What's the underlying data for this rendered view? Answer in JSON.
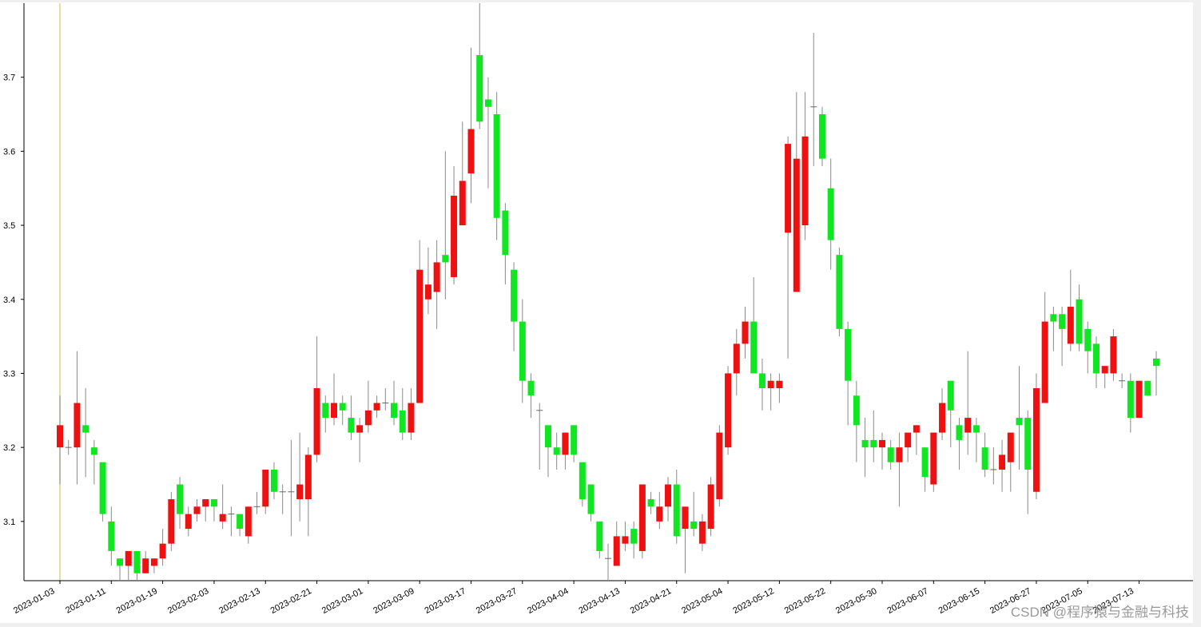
{
  "chart_data": {
    "type": "candlestick",
    "categories": [
      "2023-01-03",
      null,
      null,
      null,
      null,
      null,
      "2023-01-11",
      null,
      null,
      null,
      null,
      null,
      "2023-01-19",
      null,
      null,
      null,
      null,
      null,
      "2023-02-03",
      null,
      null,
      null,
      null,
      null,
      "2023-02-13",
      null,
      null,
      null,
      null,
      null,
      "2023-02-21",
      null,
      null,
      null,
      null,
      null,
      "2023-03-01",
      null,
      null,
      null,
      null,
      null,
      "2023-03-09",
      null,
      null,
      null,
      null,
      null,
      "2023-03-17",
      null,
      null,
      null,
      null,
      null,
      "2023-03-27",
      null,
      null,
      null,
      null,
      null,
      "2023-04-04",
      null,
      null,
      null,
      null,
      null,
      "2023-04-13",
      null,
      null,
      null,
      null,
      null,
      "2023-04-21",
      null,
      null,
      null,
      null,
      null,
      "2023-05-04",
      null,
      null,
      null,
      null,
      null,
      "2023-05-12",
      null,
      null,
      null,
      null,
      null,
      "2023-05-22",
      null,
      null,
      null,
      null,
      null,
      "2023-05-30",
      null,
      null,
      null,
      null,
      null,
      "2023-06-07",
      null,
      null,
      null,
      null,
      null,
      "2023-06-15",
      null,
      null,
      null,
      null,
      null,
      "2023-06-27",
      null,
      null,
      null,
      null,
      null,
      "2023-07-05",
      null,
      null,
      null,
      null,
      null,
      "2023-07-13",
      null,
      null
    ],
    "open": [
      3.2,
      3.2,
      3.2,
      3.23,
      3.2,
      3.18,
      3.1,
      3.05,
      3.04,
      3.06,
      3.03,
      3.04,
      3.05,
      3.07,
      3.15,
      3.09,
      3.11,
      3.12,
      3.13,
      3.1,
      3.11,
      3.11,
      3.08,
      3.12,
      3.12,
      3.17,
      3.14,
      3.14,
      3.13,
      3.13,
      3.19,
      3.26,
      3.24,
      3.26,
      3.24,
      3.22,
      3.23,
      3.25,
      3.26,
      3.26,
      3.25,
      3.22,
      3.26,
      3.4,
      3.41,
      3.46,
      3.43,
      3.5,
      3.57,
      3.73,
      3.67,
      3.65,
      3.52,
      3.44,
      3.37,
      3.29,
      3.25,
      3.23,
      3.2,
      3.19,
      3.23,
      3.18,
      3.15,
      3.1,
      3.05,
      3.04,
      3.07,
      3.09,
      3.06,
      3.13,
      3.1,
      3.12,
      3.15,
      3.09,
      3.1,
      3.07,
      3.09,
      3.13,
      3.2,
      3.3,
      3.34,
      3.37,
      3.3,
      3.28,
      3.28,
      3.49,
      3.41,
      3.5,
      3.66,
      3.65,
      3.55,
      3.46,
      3.36,
      3.27,
      3.21,
      3.21,
      3.2,
      3.2,
      3.18,
      3.2,
      3.22,
      3.2,
      3.15,
      3.22,
      3.29,
      3.23,
      3.22,
      3.23,
      3.2,
      3.17,
      3.17,
      3.18,
      3.24,
      3.24,
      3.14,
      3.26,
      3.38,
      3.38,
      3.34,
      3.4,
      3.36,
      3.34,
      3.3,
      3.3,
      3.29,
      3.29,
      3.24,
      3.29,
      3.32
    ],
    "high": [
      3.27,
      3.21,
      3.33,
      3.28,
      3.21,
      3.18,
      3.12,
      3.05,
      3.06,
      3.06,
      3.06,
      3.05,
      3.09,
      3.14,
      3.16,
      3.12,
      3.13,
      3.13,
      3.13,
      3.15,
      3.12,
      3.11,
      3.12,
      3.14,
      3.17,
      3.18,
      3.15,
      3.21,
      3.22,
      3.2,
      3.35,
      3.27,
      3.3,
      3.27,
      3.27,
      3.24,
      3.29,
      3.27,
      3.28,
      3.29,
      3.28,
      3.28,
      3.48,
      3.47,
      3.48,
      3.6,
      3.58,
      3.64,
      3.74,
      3.8,
      3.7,
      3.68,
      3.53,
      3.45,
      3.4,
      3.3,
      3.26,
      3.23,
      3.22,
      3.22,
      3.23,
      3.18,
      3.15,
      3.1,
      3.07,
      3.1,
      3.1,
      3.1,
      3.15,
      3.14,
      3.14,
      3.16,
      3.17,
      3.12,
      3.14,
      3.11,
      3.16,
      3.23,
      3.31,
      3.36,
      3.39,
      3.43,
      3.32,
      3.3,
      3.3,
      3.62,
      3.68,
      3.68,
      3.76,
      3.66,
      3.59,
      3.47,
      3.37,
      3.29,
      3.24,
      3.25,
      3.22,
      3.21,
      3.22,
      3.22,
      3.23,
      3.2,
      3.22,
      3.28,
      3.29,
      3.24,
      3.33,
      3.24,
      3.22,
      3.2,
      3.21,
      3.22,
      3.31,
      3.25,
      3.3,
      3.41,
      3.39,
      3.39,
      3.44,
      3.42,
      3.37,
      3.35,
      3.31,
      3.36,
      3.3,
      3.3,
      3.29,
      3.29,
      3.33
    ],
    "low": [
      3.15,
      3.19,
      3.15,
      3.16,
      3.15,
      3.1,
      3.04,
      3.02,
      3.02,
      3.02,
      3.03,
      3.03,
      3.04,
      3.06,
      3.09,
      3.08,
      3.1,
      3.1,
      3.1,
      3.09,
      3.08,
      3.08,
      3.07,
      3.11,
      3.11,
      3.13,
      3.11,
      3.08,
      3.1,
      3.08,
      3.18,
      3.22,
      3.23,
      3.23,
      3.21,
      3.18,
      3.22,
      3.24,
      3.25,
      3.23,
      3.21,
      3.21,
      3.26,
      3.38,
      3.36,
      3.4,
      3.42,
      3.5,
      3.53,
      3.63,
      3.55,
      3.48,
      3.42,
      3.33,
      3.26,
      3.24,
      3.17,
      3.16,
      3.17,
      3.17,
      3.18,
      3.12,
      3.1,
      3.05,
      3.02,
      3.04,
      3.06,
      3.05,
      3.05,
      3.11,
      3.09,
      3.1,
      3.07,
      3.03,
      3.08,
      3.06,
      3.08,
      3.12,
      3.19,
      3.27,
      3.32,
      3.3,
      3.25,
      3.25,
      3.26,
      3.32,
      3.41,
      3.48,
      3.58,
      3.58,
      3.44,
      3.35,
      3.23,
      3.18,
      3.16,
      3.18,
      3.17,
      3.17,
      3.12,
      3.18,
      3.19,
      3.14,
      3.14,
      3.21,
      3.2,
      3.17,
      3.19,
      3.18,
      3.16,
      3.15,
      3.14,
      3.14,
      3.17,
      3.11,
      3.13,
      3.26,
      3.33,
      3.31,
      3.33,
      3.33,
      3.3,
      3.28,
      3.28,
      3.29,
      3.28,
      3.22,
      3.24,
      3.27,
      3.27
    ],
    "close": [
      3.23,
      3.2,
      3.26,
      3.22,
      3.19,
      3.11,
      3.06,
      3.04,
      3.06,
      3.03,
      3.05,
      3.05,
      3.07,
      3.13,
      3.11,
      3.11,
      3.12,
      3.13,
      3.12,
      3.11,
      3.11,
      3.09,
      3.12,
      3.12,
      3.17,
      3.14,
      3.14,
      3.14,
      3.15,
      3.19,
      3.28,
      3.24,
      3.26,
      3.25,
      3.22,
      3.23,
      3.25,
      3.26,
      3.26,
      3.24,
      3.22,
      3.26,
      3.44,
      3.42,
      3.45,
      3.45,
      3.54,
      3.56,
      3.63,
      3.64,
      3.66,
      3.51,
      3.46,
      3.37,
      3.29,
      3.27,
      3.25,
      3.2,
      3.19,
      3.22,
      3.19,
      3.13,
      3.11,
      3.06,
      3.05,
      3.08,
      3.08,
      3.07,
      3.15,
      3.12,
      3.12,
      3.15,
      3.08,
      3.12,
      3.09,
      3.1,
      3.15,
      3.22,
      3.3,
      3.34,
      3.37,
      3.3,
      3.28,
      3.29,
      3.29,
      3.61,
      3.59,
      3.62,
      3.66,
      3.59,
      3.48,
      3.36,
      3.29,
      3.23,
      3.2,
      3.2,
      3.21,
      3.18,
      3.2,
      3.22,
      3.23,
      3.16,
      3.22,
      3.26,
      3.25,
      3.21,
      3.24,
      3.22,
      3.17,
      3.17,
      3.19,
      3.22,
      3.23,
      3.17,
      3.28,
      3.37,
      3.37,
      3.36,
      3.39,
      3.34,
      3.33,
      3.3,
      3.31,
      3.35,
      3.29,
      3.24,
      3.29,
      3.27,
      3.31
    ],
    "up_color": "#ee1111",
    "down_color": "#11e622",
    "ylim": [
      3.02,
      3.8
    ],
    "yticks": [
      3.1,
      3.2,
      3.3,
      3.4,
      3.5,
      3.6,
      3.7
    ],
    "watermark": "CSDN @程序猿与金融与科技"
  }
}
